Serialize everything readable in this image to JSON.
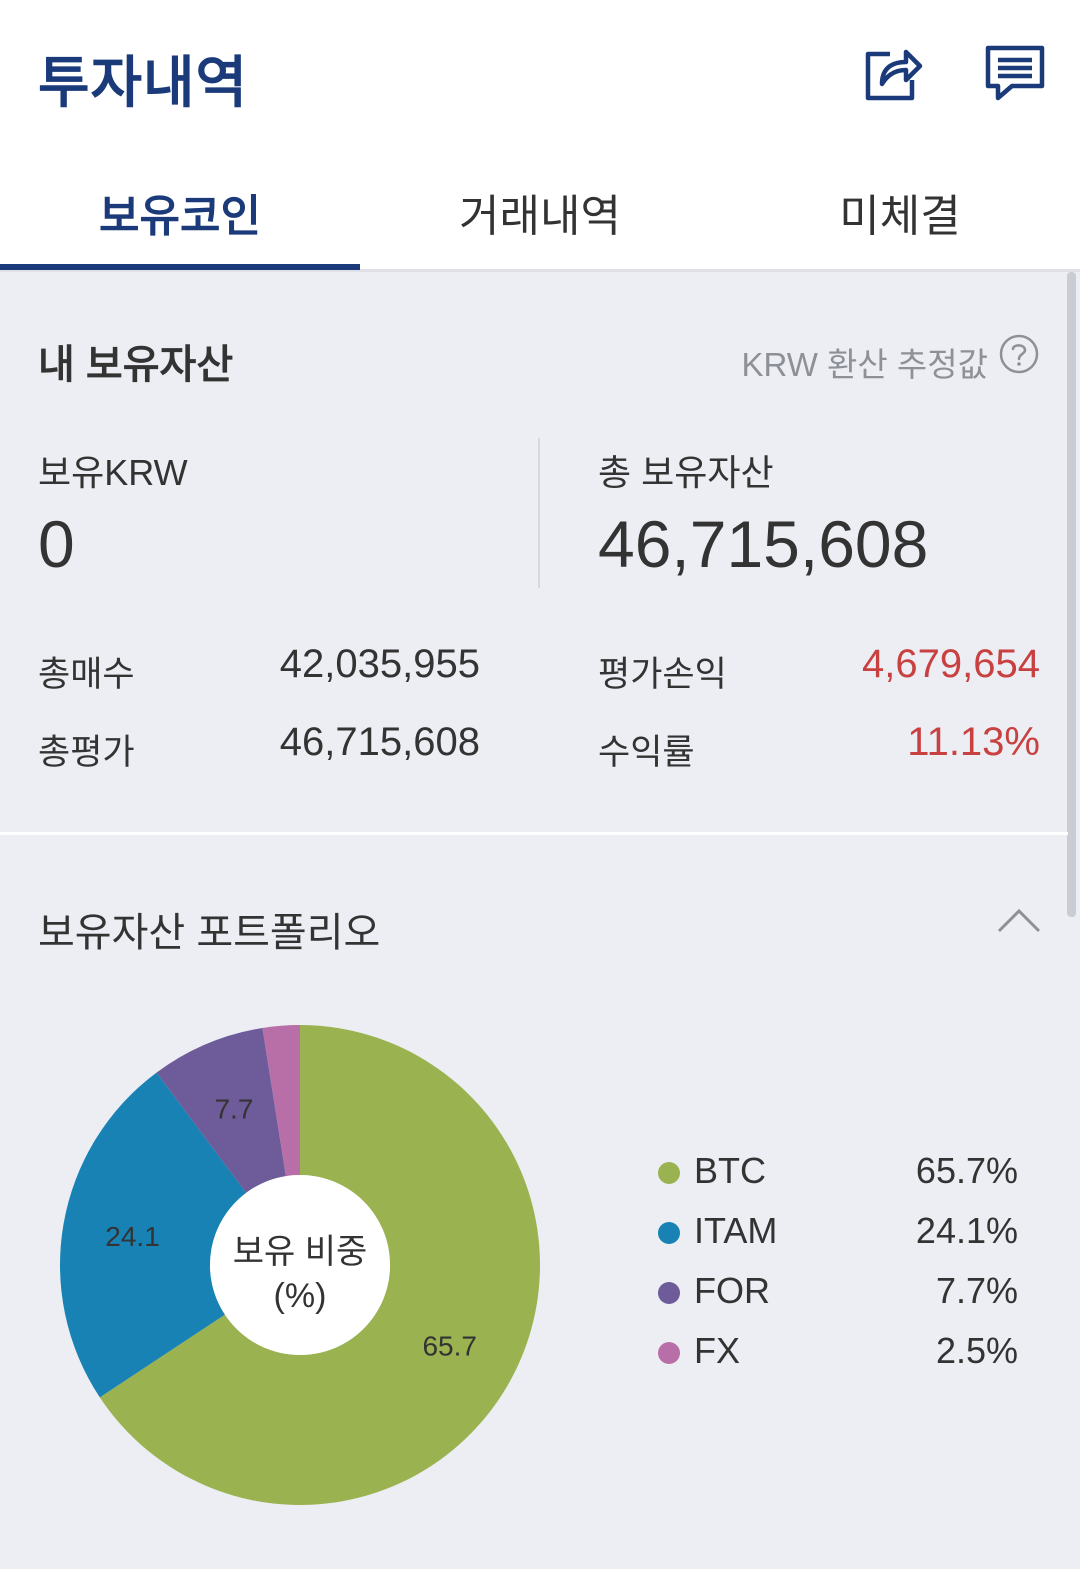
{
  "header": {
    "title": "투자내역",
    "share_icon": "share-icon",
    "chat_icon": "chat-icon"
  },
  "tabs": [
    {
      "label": "보유코인",
      "active": true
    },
    {
      "label": "거래내역",
      "active": false
    },
    {
      "label": "미체결",
      "active": false
    }
  ],
  "assets": {
    "title": "내 보유자산",
    "hint": "KRW 환산 추정값",
    "help_icon": "help-circle-icon",
    "krw_label": "보유KRW",
    "krw_value": "0",
    "total_label": "총 보유자산",
    "total_value": "46,715,608",
    "rows": [
      {
        "label": "총매수",
        "value": "42,035,955"
      },
      {
        "label": "총평가",
        "value": "46,715,608"
      },
      {
        "label": "평가손익",
        "value": "4,679,654"
      },
      {
        "label": "수익률",
        "value": "11.13%"
      }
    ],
    "profit_color": "#c8403f"
  },
  "portfolio": {
    "title": "보유자산 포트폴리오",
    "collapse_icon": "chevron-up-icon",
    "center_label_1": "보유 비중",
    "center_label_2": "(%)"
  },
  "chart_data": {
    "type": "pie",
    "categories": [
      "BTC",
      "ITAM",
      "FOR",
      "FX"
    ],
    "values": [
      65.7,
      24.1,
      7.7,
      2.5
    ],
    "data_labels": [
      "65.7",
      "24.1",
      "7.7",
      ""
    ],
    "legend_values": [
      "65.7%",
      "24.1%",
      "7.7%",
      "2.5%"
    ],
    "colors": [
      "#9ab350",
      "#1782b3",
      "#6e5b9a",
      "#b86fa8"
    ],
    "legend": "right",
    "donut": true
  }
}
